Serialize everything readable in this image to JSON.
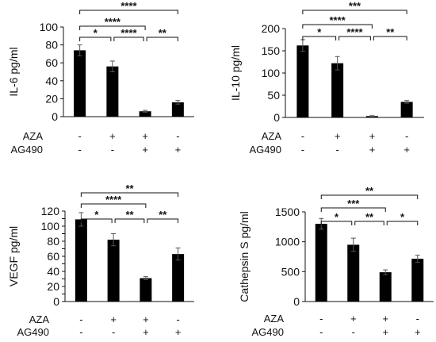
{
  "chart_data": [
    {
      "type": "bar",
      "ylabel": "IL-6  pg/ml",
      "ylim": [
        0,
        100
      ],
      "yticks": [
        0,
        20,
        40,
        60,
        80,
        100
      ],
      "values": [
        74,
        56,
        6,
        16
      ],
      "errors": [
        6,
        6,
        1,
        2
      ],
      "treatments": [
        {
          "label": "AZA",
          "signs": [
            "-",
            "+",
            "+",
            "-"
          ]
        },
        {
          "label": "AG490",
          "signs": [
            "-",
            "-",
            "+",
            "+"
          ]
        }
      ],
      "significance": [
        {
          "from": 0,
          "to": 1,
          "stars": "*"
        },
        {
          "from": 1,
          "to": 2,
          "stars": "****"
        },
        {
          "from": 2,
          "to": 3,
          "stars": "**"
        },
        {
          "from": 0,
          "to": 2,
          "stars": "****"
        },
        {
          "from": 0,
          "to": 3,
          "stars": "****"
        }
      ]
    },
    {
      "type": "bar",
      "ylabel": "IL-10  pg/ml",
      "ylim": [
        0,
        200
      ],
      "yticks": [
        0,
        50,
        100,
        150,
        200
      ],
      "values": [
        162,
        122,
        3,
        35
      ],
      "errors": [
        13,
        15,
        1,
        3
      ],
      "treatments": [
        {
          "label": "AZA",
          "signs": [
            "-",
            "+",
            "+",
            "-"
          ]
        },
        {
          "label": "AG490",
          "signs": [
            "-",
            "-",
            "+",
            "+"
          ]
        }
      ],
      "significance": [
        {
          "from": 0,
          "to": 1,
          "stars": "*"
        },
        {
          "from": 1,
          "to": 2,
          "stars": "****"
        },
        {
          "from": 2,
          "to": 3,
          "stars": "**"
        },
        {
          "from": 0,
          "to": 2,
          "stars": "****"
        },
        {
          "from": 0,
          "to": 3,
          "stars": "***"
        }
      ]
    },
    {
      "type": "bar",
      "ylabel": "VEGF  pg/ml",
      "ylim": [
        0,
        120
      ],
      "yticks": [
        0,
        10,
        20,
        30,
        40,
        50,
        60,
        70,
        80,
        90,
        100,
        110,
        120
      ],
      "ytick_labels": [
        "0",
        "",
        "20",
        "",
        "40",
        "",
        "60",
        "",
        "80",
        "",
        "100",
        "",
        "120"
      ],
      "values": [
        109,
        82,
        31,
        63
      ],
      "errors": [
        9,
        8,
        2,
        8
      ],
      "treatments": [
        {
          "label": "AZA",
          "signs": [
            "-",
            "+",
            "+",
            "-"
          ]
        },
        {
          "label": "AG490",
          "signs": [
            "-",
            "-",
            "+",
            "+"
          ]
        }
      ],
      "significance": [
        {
          "from": 0,
          "to": 1,
          "stars": "*"
        },
        {
          "from": 1,
          "to": 2,
          "stars": "**"
        },
        {
          "from": 2,
          "to": 3,
          "stars": "**"
        },
        {
          "from": 0,
          "to": 2,
          "stars": "****"
        },
        {
          "from": 0,
          "to": 3,
          "stars": "**"
        }
      ]
    },
    {
      "type": "bar",
      "ylabel": "Cathepsin S pg/ml",
      "ylim": [
        0,
        1500
      ],
      "yticks": [
        0,
        500,
        1000,
        1500
      ],
      "values": [
        1300,
        950,
        490,
        715
      ],
      "errors": [
        90,
        110,
        40,
        60
      ],
      "treatments": [
        {
          "label": "AZA",
          "signs": [
            "-",
            "+",
            "+",
            "-"
          ]
        },
        {
          "label": "AG490",
          "signs": [
            "-",
            "-",
            "+",
            "+"
          ]
        }
      ],
      "significance": [
        {
          "from": 0,
          "to": 1,
          "stars": "*"
        },
        {
          "from": 1,
          "to": 2,
          "stars": "**"
        },
        {
          "from": 2,
          "to": 3,
          "stars": "*"
        },
        {
          "from": 0,
          "to": 2,
          "stars": "***"
        },
        {
          "from": 0,
          "to": 3,
          "stars": "**"
        }
      ]
    }
  ]
}
